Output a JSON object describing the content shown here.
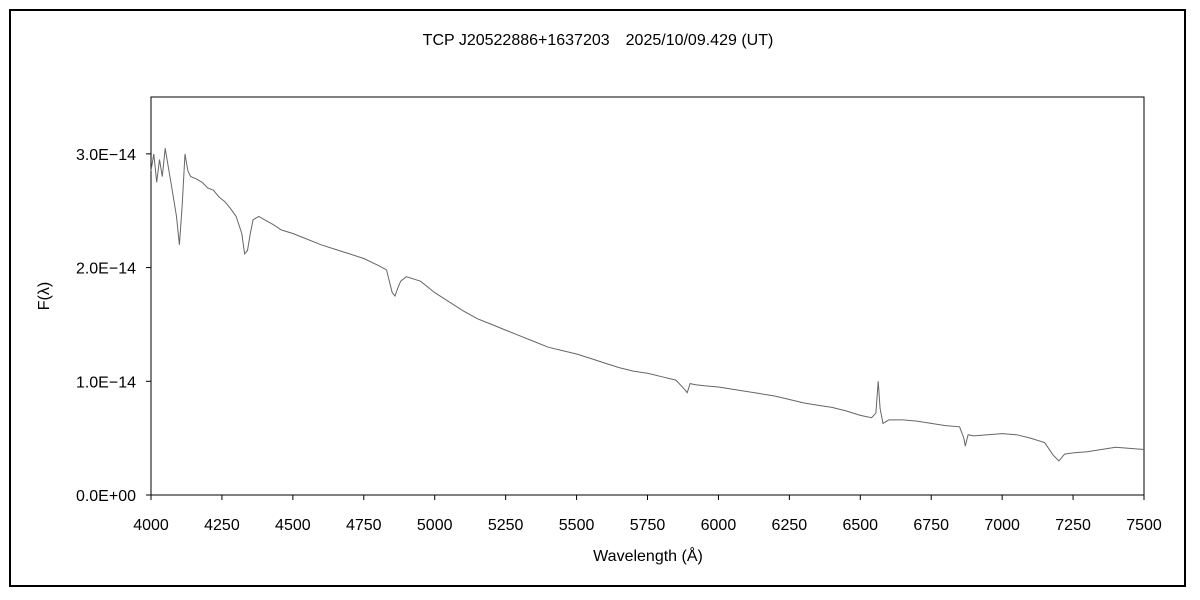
{
  "chart_data": {
    "type": "line",
    "title": "TCP J20522886+1637203　2025/10/09.429 (UT)",
    "xlabel": "Wavelength (Å)",
    "ylabel": "F(λ)",
    "xlim": [
      4000,
      7500
    ],
    "ylim": [
      0,
      3.5e-14
    ],
    "x_ticks": [
      4000,
      4250,
      4500,
      4750,
      5000,
      5250,
      5500,
      5750,
      6000,
      6250,
      6500,
      6750,
      7000,
      7250,
      7500
    ],
    "x_tick_labels": [
      "4000",
      "4250",
      "4500",
      "4750",
      "5000",
      "5250",
      "5500",
      "5750",
      "6000",
      "6250",
      "6500",
      "6750",
      "7000",
      "7250",
      "7500"
    ],
    "y_ticks": [
      0,
      1e-14,
      2e-14,
      3e-14
    ],
    "y_tick_labels": [
      "0.0E+00",
      "1.0E−14",
      "2.0E−14",
      "3.0E−14"
    ],
    "grid": false,
    "legend": "none",
    "line_color": "#666666",
    "series": [
      {
        "x": [
          4000,
          4010,
          4020,
          4030,
          4040,
          4050,
          4060,
          4070,
          4080,
          4090,
          4100,
          4110,
          4120,
          4130,
          4140,
          4160,
          4180,
          4200,
          4220,
          4240,
          4260,
          4280,
          4300,
          4320,
          4330,
          4340,
          4350,
          4360,
          4380,
          4400,
          4430,
          4460,
          4500,
          4550,
          4600,
          4650,
          4700,
          4750,
          4800,
          4830,
          4850,
          4860,
          4870,
          4880,
          4900,
          4950,
          5000,
          5050,
          5100,
          5150,
          5200,
          5250,
          5300,
          5350,
          5400,
          5450,
          5500,
          5550,
          5600,
          5650,
          5700,
          5750,
          5800,
          5850,
          5880,
          5890,
          5900,
          5920,
          5950,
          6000,
          6050,
          6100,
          6150,
          6200,
          6250,
          6300,
          6350,
          6400,
          6450,
          6500,
          6540,
          6555,
          6563,
          6570,
          6580,
          6600,
          6650,
          6700,
          6750,
          6800,
          6850,
          6865,
          6870,
          6880,
          6900,
          6950,
          7000,
          7050,
          7100,
          7150,
          7180,
          7200,
          7220,
          7250,
          7300,
          7350,
          7400,
          7450,
          7500
        ],
        "y": [
          2.85e-14,
          3e-14,
          2.75e-14,
          2.95e-14,
          2.8e-14,
          3.05e-14,
          2.9e-14,
          2.75e-14,
          2.6e-14,
          2.45e-14,
          2.2e-14,
          2.55e-14,
          3e-14,
          2.85e-14,
          2.8e-14,
          2.78e-14,
          2.75e-14,
          2.7e-14,
          2.68e-14,
          2.62e-14,
          2.58e-14,
          2.52e-14,
          2.45e-14,
          2.3e-14,
          2.12e-14,
          2.15e-14,
          2.3e-14,
          2.42e-14,
          2.45e-14,
          2.42e-14,
          2.38e-14,
          2.33e-14,
          2.3e-14,
          2.25e-14,
          2.2e-14,
          2.16e-14,
          2.12e-14,
          2.08e-14,
          2.02e-14,
          1.98e-14,
          1.78e-14,
          1.75e-14,
          1.82e-14,
          1.88e-14,
          1.92e-14,
          1.88e-14,
          1.78e-14,
          1.7e-14,
          1.62e-14,
          1.55e-14,
          1.5e-14,
          1.45e-14,
          1.4e-14,
          1.35e-14,
          1.3e-14,
          1.27e-14,
          1.24e-14,
          1.2e-14,
          1.16e-14,
          1.12e-14,
          1.09e-14,
          1.07e-14,
          1.04e-14,
          1.01e-14,
          9.3e-15,
          9e-15,
          9.8e-15,
          9.7e-15,
          9.6e-15,
          9.5e-15,
          9.3e-15,
          9.1e-15,
          8.9e-15,
          8.7e-15,
          8.4e-15,
          8.1e-15,
          7.9e-15,
          7.7e-15,
          7.4e-15,
          7e-15,
          6.8e-15,
          7.2e-15,
          1e-14,
          7.6e-15,
          6.3e-15,
          6.6e-15,
          6.6e-15,
          6.5e-15,
          6.3e-15,
          6.1e-15,
          6e-15,
          5e-15,
          4.3e-15,
          5.3e-15,
          5.2e-15,
          5.3e-15,
          5.4e-15,
          5.3e-15,
          5e-15,
          4.6e-15,
          3.5e-15,
          3e-15,
          3.6e-15,
          3.7e-15,
          3.8e-15,
          4e-15,
          4.2e-15,
          4.1e-15,
          4e-15
        ]
      }
    ]
  }
}
